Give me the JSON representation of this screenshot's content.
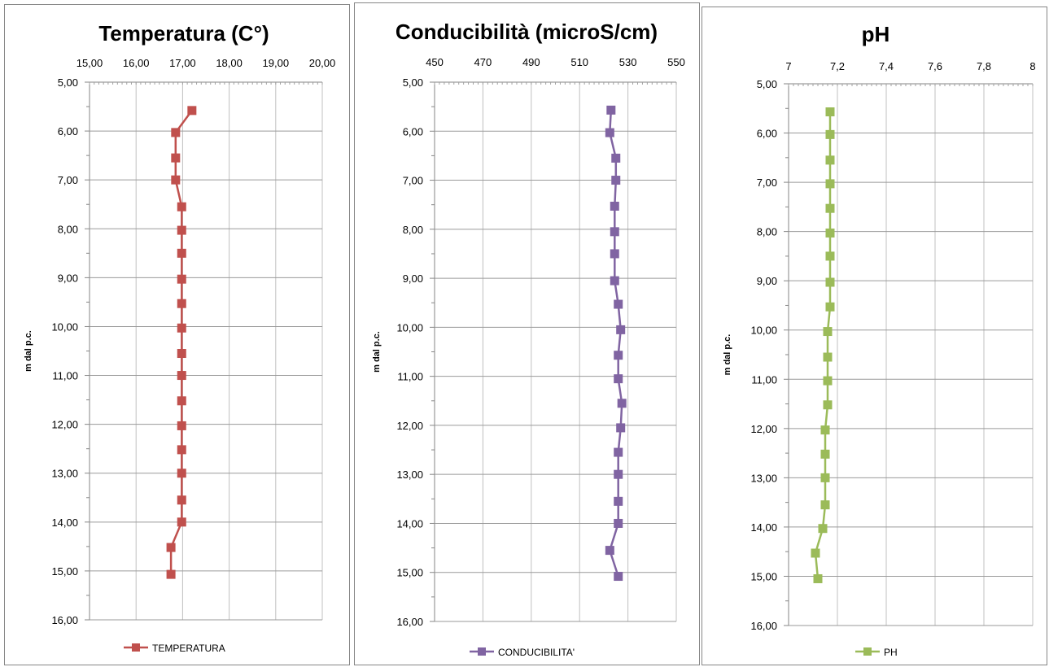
{
  "chart_data": [
    {
      "type": "line",
      "title": "Temperatura (C°)",
      "xlabel": "",
      "ylabel": "m dal p.c.",
      "xlim": [
        15,
        20
      ],
      "ylim": [
        5,
        16
      ],
      "y_inverted": true,
      "x_axis_position": "top",
      "x_ticks": [
        "15,00",
        "16,00",
        "17,00",
        "18,00",
        "19,00",
        "20,00"
      ],
      "y_ticks": [
        "5,00",
        "6,00",
        "7,00",
        "8,00",
        "9,00",
        "10,00",
        "11,00",
        "12,00",
        "13,00",
        "14,00",
        "15,00",
        "16,00"
      ],
      "grid": "vertical and horizontal major gridlines",
      "legend_position": "bottom",
      "series": [
        {
          "name": "TEMPERATURA",
          "color": "#c0504d",
          "marker": "square",
          "points": [
            [
              17.2,
              5.58
            ],
            [
              16.85,
              6.03
            ],
            [
              16.85,
              6.55
            ],
            [
              16.85,
              7.0
            ],
            [
              16.98,
              7.55
            ],
            [
              16.98,
              8.03
            ],
            [
              16.98,
              8.5
            ],
            [
              16.98,
              9.03
            ],
            [
              16.98,
              9.53
            ],
            [
              16.98,
              10.03
            ],
            [
              16.98,
              10.55
            ],
            [
              16.98,
              11.0
            ],
            [
              16.98,
              11.52
            ],
            [
              16.98,
              12.03
            ],
            [
              16.98,
              12.52
            ],
            [
              16.98,
              13.0
            ],
            [
              16.98,
              13.55
            ],
            [
              16.98,
              14.0
            ],
            [
              16.75,
              14.52
            ],
            [
              16.75,
              15.07
            ]
          ]
        }
      ]
    },
    {
      "type": "line",
      "title": "Conducibilità (microS/cm)",
      "xlabel": "",
      "ylabel": "m dal p.c.",
      "xlim": [
        450,
        550
      ],
      "ylim": [
        5,
        16
      ],
      "y_inverted": true,
      "x_axis_position": "top",
      "x_ticks": [
        "450",
        "470",
        "490",
        "510",
        "530",
        "550"
      ],
      "y_ticks": [
        "5,00",
        "6,00",
        "7,00",
        "8,00",
        "9,00",
        "10,00",
        "11,00",
        "12,00",
        "13,00",
        "14,00",
        "15,00",
        "16,00"
      ],
      "grid": "vertical and horizontal major gridlines",
      "legend_position": "bottom",
      "series": [
        {
          "name": "CONDUCIBILITA'",
          "color": "#8064a2",
          "marker": "square",
          "points": [
            [
              523,
              5.57
            ],
            [
              522.5,
              6.03
            ],
            [
              525,
              6.55
            ],
            [
              525,
              7.0
            ],
            [
              524.5,
              7.53
            ],
            [
              524.5,
              8.05
            ],
            [
              524.5,
              8.5
            ],
            [
              524.5,
              9.05
            ],
            [
              526,
              9.53
            ],
            [
              527,
              10.05
            ],
            [
              526,
              10.57
            ],
            [
              526,
              11.05
            ],
            [
              527.5,
              11.55
            ],
            [
              527,
              12.05
            ],
            [
              526,
              12.55
            ],
            [
              526,
              13.0
            ],
            [
              526,
              13.55
            ],
            [
              526,
              14.0
            ],
            [
              522.5,
              14.55
            ],
            [
              526,
              15.08
            ]
          ]
        }
      ]
    },
    {
      "type": "line",
      "title": "pH",
      "xlabel": "",
      "ylabel": "m dal p.c.",
      "xlim": [
        7,
        8
      ],
      "ylim": [
        5,
        16
      ],
      "y_inverted": true,
      "x_axis_position": "top",
      "x_ticks": [
        "7",
        "7,2",
        "7,4",
        "7,6",
        "7,8",
        "8"
      ],
      "y_ticks": [
        "5,00",
        "6,00",
        "7,00",
        "8,00",
        "9,00",
        "10,00",
        "11,00",
        "12,00",
        "13,00",
        "14,00",
        "15,00",
        "16,00"
      ],
      "grid": "vertical and horizontal major gridlines",
      "legend_position": "bottom",
      "series": [
        {
          "name": "PH",
          "color": "#9bbb59",
          "marker": "square",
          "points": [
            [
              7.17,
              5.57
            ],
            [
              7.17,
              6.03
            ],
            [
              7.17,
              6.55
            ],
            [
              7.17,
              7.03
            ],
            [
              7.17,
              7.53
            ],
            [
              7.17,
              8.03
            ],
            [
              7.17,
              8.5
            ],
            [
              7.17,
              9.03
            ],
            [
              7.17,
              9.53
            ],
            [
              7.16,
              10.03
            ],
            [
              7.16,
              10.55
            ],
            [
              7.16,
              11.03
            ],
            [
              7.16,
              11.52
            ],
            [
              7.15,
              12.03
            ],
            [
              7.15,
              12.52
            ],
            [
              7.15,
              13.0
            ],
            [
              7.15,
              13.55
            ],
            [
              7.14,
              14.03
            ],
            [
              7.11,
              14.53
            ],
            [
              7.12,
              15.05
            ]
          ]
        }
      ]
    }
  ]
}
